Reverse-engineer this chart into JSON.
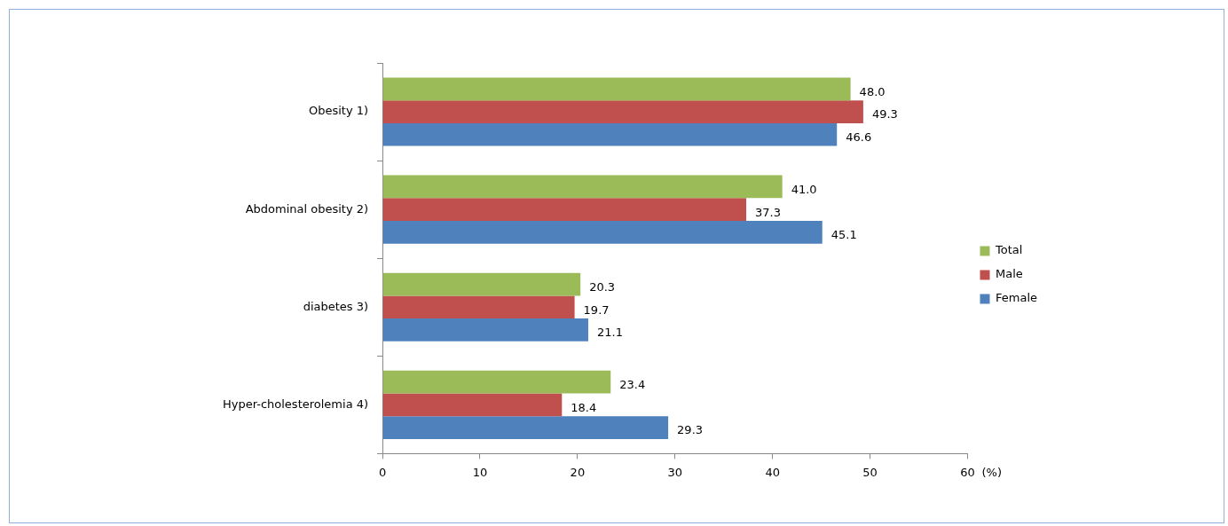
{
  "chart_data": {
    "type": "bar",
    "orientation": "horizontal",
    "xlabel": "(%)",
    "categories": [
      "Obesity 1)",
      "Abdominal obesity 2)",
      "diabetes 3)",
      "Hyper-cholesterolemia 4)"
    ],
    "series": [
      {
        "name": "Total",
        "color": "#9bbb59",
        "values": [
          48.0,
          41.0,
          20.3,
          23.4
        ],
        "value_labels": [
          "48.0",
          "41.0",
          "20.3",
          "23.4"
        ]
      },
      {
        "name": "Male",
        "color": "#c0504d",
        "values": [
          49.3,
          37.3,
          19.7,
          18.4
        ],
        "value_labels": [
          "49.3",
          "37.3",
          "19.7",
          "18.4"
        ]
      },
      {
        "name": "Female",
        "color": "#4f81bd",
        "values": [
          46.6,
          45.1,
          21.1,
          29.3
        ],
        "value_labels": [
          "46.6",
          "45.1",
          "21.1",
          "29.3"
        ]
      }
    ],
    "xlim": [
      0,
      60
    ],
    "xticks": [
      0,
      10,
      20,
      30,
      40,
      50,
      60
    ],
    "grid": false,
    "legend": "right"
  }
}
